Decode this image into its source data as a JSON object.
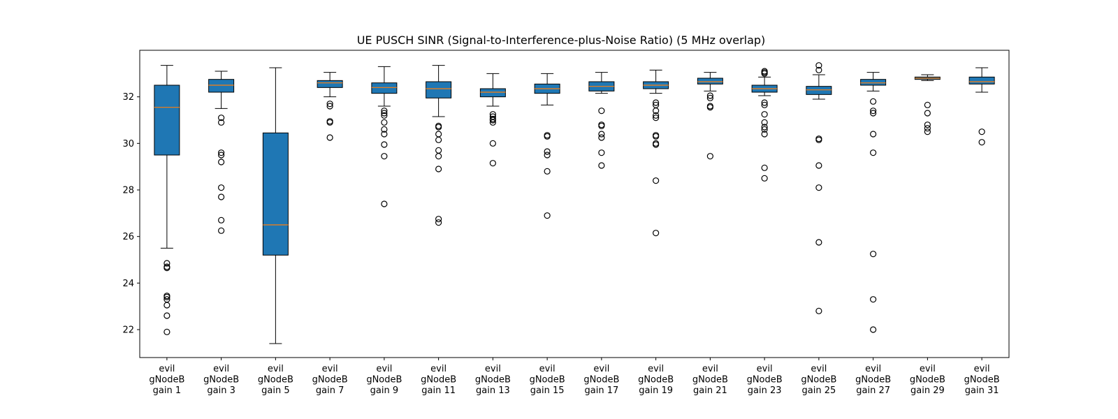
{
  "chart_data": {
    "type": "boxplot",
    "title": "UE PUSCH SINR (Signal-to-Interference-plus-Noise Ratio) (5 MHz overlap)",
    "xlabel": "",
    "ylabel": "",
    "ylim": [
      20.8,
      34.0
    ],
    "yticks": [
      22,
      24,
      26,
      28,
      30,
      32
    ],
    "grid": false,
    "colors": {
      "box": "#1f77b4",
      "median": "#ff7f0e",
      "edge": "#000000"
    },
    "categories": [
      "evil gNodeB gain 1",
      "evil gNodeB gain 3",
      "evil gNodeB gain 5",
      "evil gNodeB gain 7",
      "evil gNodeB gain 9",
      "evil gNodeB gain 11",
      "evil gNodeB gain 13",
      "evil gNodeB gain 15",
      "evil gNodeB gain 17",
      "evil gNodeB gain 19",
      "evil gNodeB gain 21",
      "evil gNodeB gain 23",
      "evil gNodeB gain 25",
      "evil gNodeB gain 27",
      "evil gNodeB gain 29",
      "evil gNodeB gain 31"
    ],
    "category_lines": [
      [
        "evil",
        "gNodeB",
        "gain 1"
      ],
      [
        "evil",
        "gNodeB",
        "gain 3"
      ],
      [
        "evil",
        "gNodeB",
        "gain 5"
      ],
      [
        "evil",
        "gNodeB",
        "gain 7"
      ],
      [
        "evil",
        "gNodeB",
        "gain 9"
      ],
      [
        "evil",
        "gNodeB",
        "gain 11"
      ],
      [
        "evil",
        "gNodeB",
        "gain 13"
      ],
      [
        "evil",
        "gNodeB",
        "gain 15"
      ],
      [
        "evil",
        "gNodeB",
        "gain 17"
      ],
      [
        "evil",
        "gNodeB",
        "gain 19"
      ],
      [
        "evil",
        "gNodeB",
        "gain 21"
      ],
      [
        "evil",
        "gNodeB",
        "gain 23"
      ],
      [
        "evil",
        "gNodeB",
        "gain 25"
      ],
      [
        "evil",
        "gNodeB",
        "gain 27"
      ],
      [
        "evil",
        "gNodeB",
        "gain 29"
      ],
      [
        "evil",
        "gNodeB",
        "gain 31"
      ]
    ],
    "boxes": [
      {
        "whislo": 25.5,
        "q1": 29.5,
        "med": 31.55,
        "q3": 32.5,
        "whishi": 33.35,
        "fliers": [
          24.85,
          24.7,
          24.65,
          23.45,
          23.4,
          23.3,
          23.05,
          22.6,
          21.9
        ]
      },
      {
        "whislo": 31.5,
        "q1": 32.2,
        "med": 32.5,
        "q3": 32.75,
        "whishi": 33.1,
        "fliers": [
          31.1,
          30.9,
          29.6,
          29.5,
          29.2,
          28.1,
          27.7,
          26.7,
          26.25
        ]
      },
      {
        "whislo": 21.4,
        "q1": 25.2,
        "med": 26.5,
        "q3": 30.45,
        "whishi": 33.25,
        "fliers": []
      },
      {
        "whislo": 32.0,
        "q1": 32.4,
        "med": 32.6,
        "q3": 32.7,
        "whishi": 33.05,
        "fliers": [
          31.7,
          31.6,
          30.95,
          30.9,
          30.25
        ]
      },
      {
        "whislo": 31.6,
        "q1": 32.15,
        "med": 32.4,
        "q3": 32.6,
        "whishi": 33.3,
        "fliers": [
          31.4,
          31.3,
          31.2,
          30.9,
          30.6,
          30.4,
          29.95,
          29.45,
          27.4
        ]
      },
      {
        "whislo": 31.15,
        "q1": 31.95,
        "med": 32.35,
        "q3": 32.65,
        "whishi": 33.35,
        "fliers": [
          30.75,
          30.7,
          30.4,
          30.15,
          29.7,
          29.45,
          28.9,
          26.75,
          26.6
        ]
      },
      {
        "whislo": 31.6,
        "q1": 32.0,
        "med": 32.2,
        "q3": 32.35,
        "whishi": 33.0,
        "fliers": [
          31.25,
          31.15,
          31.05,
          31.0,
          30.9,
          30.0,
          29.15
        ]
      },
      {
        "whislo": 31.65,
        "q1": 32.15,
        "med": 32.35,
        "q3": 32.55,
        "whishi": 33.0,
        "fliers": [
          30.35,
          30.3,
          29.65,
          29.5,
          28.8,
          26.9
        ]
      },
      {
        "whislo": 32.15,
        "q1": 32.25,
        "med": 32.45,
        "q3": 32.65,
        "whishi": 33.05,
        "fliers": [
          31.4,
          30.8,
          30.75,
          30.4,
          30.25,
          29.6,
          29.05
        ]
      },
      {
        "whislo": 32.15,
        "q1": 32.35,
        "med": 32.5,
        "q3": 32.65,
        "whishi": 33.15,
        "fliers": [
          31.75,
          31.65,
          31.4,
          31.2,
          31.1,
          30.35,
          30.3,
          30.0,
          29.95,
          28.4,
          26.15
        ]
      },
      {
        "whislo": 32.25,
        "q1": 32.55,
        "med": 32.65,
        "q3": 32.8,
        "whishi": 33.05,
        "fliers": [
          32.05,
          31.95,
          31.6,
          31.55,
          29.45
        ]
      },
      {
        "whislo": 32.05,
        "q1": 32.2,
        "med": 32.35,
        "q3": 32.5,
        "whishi": 32.85,
        "fliers": [
          33.1,
          33.05,
          33.0,
          31.75,
          31.65,
          31.25,
          30.9,
          30.7,
          30.6,
          30.4,
          28.95,
          28.5
        ]
      },
      {
        "whislo": 31.9,
        "q1": 32.1,
        "med": 32.3,
        "q3": 32.45,
        "whishi": 32.95,
        "fliers": [
          33.35,
          33.15,
          30.2,
          30.15,
          29.05,
          28.1,
          25.75,
          22.8
        ]
      },
      {
        "whislo": 32.25,
        "q1": 32.5,
        "med": 32.6,
        "q3": 32.75,
        "whishi": 33.05,
        "fliers": [
          31.8,
          31.4,
          31.3,
          30.4,
          29.6,
          25.25,
          23.3,
          22.0
        ]
      },
      {
        "whislo": 32.7,
        "q1": 32.75,
        "med": 32.8,
        "q3": 32.85,
        "whishi": 32.95,
        "fliers": [
          31.65,
          31.3,
          30.8,
          30.65,
          30.5
        ]
      },
      {
        "whislo": 32.2,
        "q1": 32.55,
        "med": 32.65,
        "q3": 32.85,
        "whishi": 33.25,
        "fliers": [
          30.5,
          30.05
        ]
      }
    ]
  }
}
